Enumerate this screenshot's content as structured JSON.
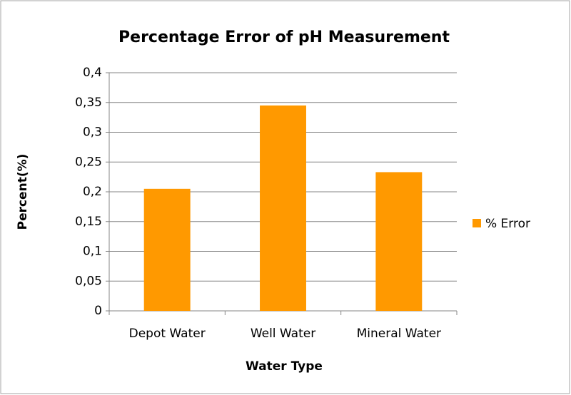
{
  "chart_data": {
    "type": "bar",
    "title": "Percentage Error of pH Measurement",
    "x_label": "Water Type",
    "y_label": "Percent(%)",
    "categories": [
      "Depot Water",
      "Well Water",
      "Mineral Water"
    ],
    "series": [
      {
        "name": "% Error",
        "color": "#ff9900",
        "values": [
          0.205,
          0.345,
          0.233
        ]
      }
    ],
    "ylim": [
      0,
      0.4
    ],
    "yticks": [
      0,
      {
        "value": 0.05,
        "label": "0,05"
      },
      {
        "value": 0.1,
        "label": "0,1"
      },
      {
        "value": 0.15,
        "label": "0,15"
      },
      {
        "value": 0.2,
        "label": "0,2"
      },
      {
        "value": 0.25,
        "label": "0,25"
      },
      {
        "value": 0.3,
        "label": "0,3"
      },
      {
        "value": 0.35,
        "label": "0,35"
      },
      {
        "value": 0.4,
        "label": "0,4"
      }
    ],
    "grid": true,
    "legend": "right"
  }
}
